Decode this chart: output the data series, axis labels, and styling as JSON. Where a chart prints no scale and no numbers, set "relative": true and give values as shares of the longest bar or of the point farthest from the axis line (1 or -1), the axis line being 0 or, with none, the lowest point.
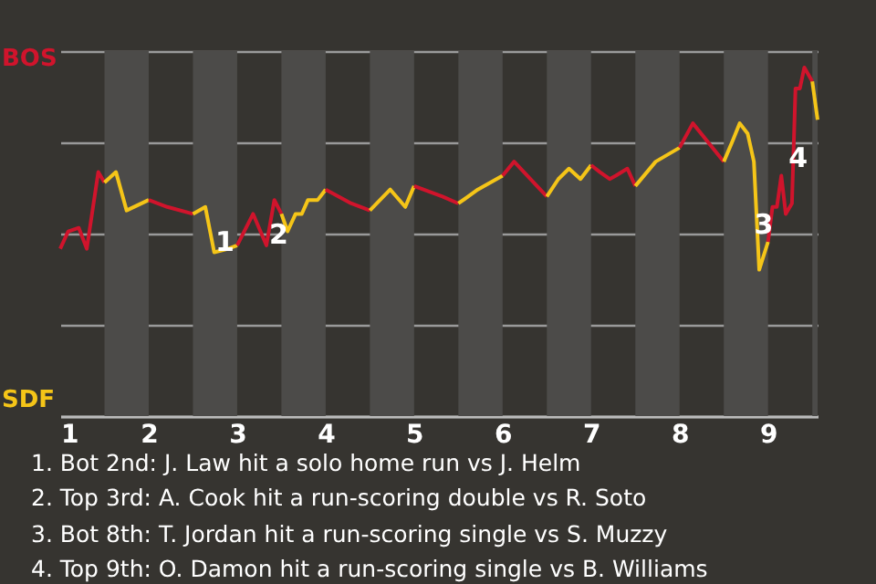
{
  "chart_data": {
    "type": "line",
    "relative": true,
    "series": [
      {
        "color": "#d0142c",
        "x": [
          1,
          1.09,
          1.21,
          1.3,
          1.43,
          1.5
        ],
        "values": [
          0.48,
          0.53,
          0.54,
          0.48,
          0.7,
          0.67
        ]
      },
      {
        "color": "#f5c518",
        "x": [
          1.5,
          1.63,
          1.75,
          2
        ],
        "values": [
          0.67,
          0.7,
          0.59,
          0.62
        ]
      },
      {
        "color": "#d0142c",
        "x": [
          2,
          2.21,
          2.5
        ],
        "values": [
          0.62,
          0.6,
          0.58
        ]
      },
      {
        "color": "#f5c518",
        "x": [
          2.5,
          2.64,
          2.74,
          2.9,
          3
        ],
        "values": [
          0.58,
          0.6,
          0.47,
          0.48,
          0.49
        ]
      },
      {
        "color": "#d0142c",
        "x": [
          3,
          3.18,
          3.33,
          3.42,
          3.5
        ],
        "values": [
          0.49,
          0.58,
          0.49,
          0.62,
          0.58
        ]
      },
      {
        "color": "#f5c518",
        "x": [
          3.5,
          3.57,
          3.66,
          3.73,
          3.8,
          3.91,
          4
        ],
        "values": [
          0.58,
          0.53,
          0.58,
          0.58,
          0.62,
          0.62,
          0.65
        ]
      },
      {
        "color": "#d0142c",
        "x": [
          4,
          4.29,
          4.5
        ],
        "values": [
          0.65,
          0.61,
          0.59
        ]
      },
      {
        "color": "#f5c518",
        "x": [
          4.5,
          4.73,
          4.9,
          5
        ],
        "values": [
          0.59,
          0.65,
          0.6,
          0.66
        ]
      },
      {
        "color": "#d0142c",
        "x": [
          5,
          5.32,
          5.5
        ],
        "values": [
          0.66,
          0.63,
          0.61
        ]
      },
      {
        "color": "#f5c518",
        "x": [
          5.5,
          5.72,
          6
        ],
        "values": [
          0.61,
          0.65,
          0.69
        ]
      },
      {
        "color": "#d0142c",
        "x": [
          6,
          6.13,
          6.5
        ],
        "values": [
          0.69,
          0.73,
          0.63
        ]
      },
      {
        "color": "#f5c518",
        "x": [
          6.5,
          6.63,
          6.75,
          6.88,
          7
        ],
        "values": [
          0.63,
          0.68,
          0.71,
          0.68,
          0.72
        ]
      },
      {
        "color": "#d0142c",
        "x": [
          7,
          7.1,
          7.21,
          7.28,
          7.41,
          7.5
        ],
        "values": [
          0.72,
          0.7,
          0.68,
          0.69,
          0.71,
          0.66
        ]
      },
      {
        "color": "#f5c518",
        "x": [
          7.5,
          7.73,
          8
        ],
        "values": [
          0.66,
          0.73,
          0.77
        ]
      },
      {
        "color": "#d0142c",
        "x": [
          8,
          8.15,
          8.5
        ],
        "values": [
          0.77,
          0.84,
          0.73
        ]
      },
      {
        "color": "#f5c518",
        "x": [
          8.5,
          8.6,
          8.68,
          8.77,
          8.84,
          8.9,
          9
        ],
        "values": [
          0.73,
          0.79,
          0.84,
          0.81,
          0.73,
          0.42,
          0.5
        ]
      },
      {
        "color": "#d0142c",
        "x": [
          9,
          9.05,
          9.1,
          9.15,
          9.2,
          9.27,
          9.31,
          9.36,
          9.41,
          9.5
        ],
        "values": [
          0.5,
          0.6,
          0.6,
          0.69,
          0.58,
          0.61,
          0.94,
          0.94,
          1,
          0.96
        ]
      },
      {
        "color": "#f5c518",
        "x": [
          9.5,
          9.56
        ],
        "values": [
          0.96,
          0.85
        ]
      }
    ],
    "xlim": [
      1,
      9.56
    ],
    "xticks": [
      1,
      2,
      3,
      4,
      5,
      6,
      7,
      8,
      9
    ],
    "grid": "y",
    "bands": [
      {
        "axis": "x",
        "from": 1.5,
        "to": 2,
        "color": "#4c4b49"
      },
      {
        "axis": "x",
        "from": 2.5,
        "to": 3,
        "color": "#4c4b49"
      },
      {
        "axis": "x",
        "from": 3.5,
        "to": 4,
        "color": "#4c4b49"
      },
      {
        "axis": "x",
        "from": 4.5,
        "to": 5,
        "color": "#4c4b49"
      },
      {
        "axis": "x",
        "from": 5.5,
        "to": 6,
        "color": "#4c4b49"
      },
      {
        "axis": "x",
        "from": 6.5,
        "to": 7,
        "color": "#4c4b49"
      },
      {
        "axis": "x",
        "from": 7.5,
        "to": 8,
        "color": "#4c4b49"
      },
      {
        "axis": "x",
        "from": 8.5,
        "to": 9,
        "color": "#4c4b49"
      },
      {
        "axis": "x",
        "from": 9.5,
        "to": 9.56,
        "color": "#4c4b49"
      }
    ],
    "annotations": [
      {
        "text": "1",
        "x": 2.86,
        "y": 0.5
      },
      {
        "text": "2",
        "x": 3.47,
        "y": 0.52
      },
      {
        "text": "3",
        "x": 8.95,
        "y": 0.55
      },
      {
        "text": "4",
        "x": 9.34,
        "y": 0.74
      },
      "BOS",
      "SDF",
      "1. Bot 2nd: J. Law hit a solo home run vs J. Helm",
      "2. Top 3rd: A. Cook hit a run-scoring double vs R. Soto",
      "3. Bot 8th: T. Jordan hit a run-scoring single vs S. Muzzy",
      "4. Top 9th: O. Damon hit a run-scoring single vs B. Williams"
    ]
  }
}
